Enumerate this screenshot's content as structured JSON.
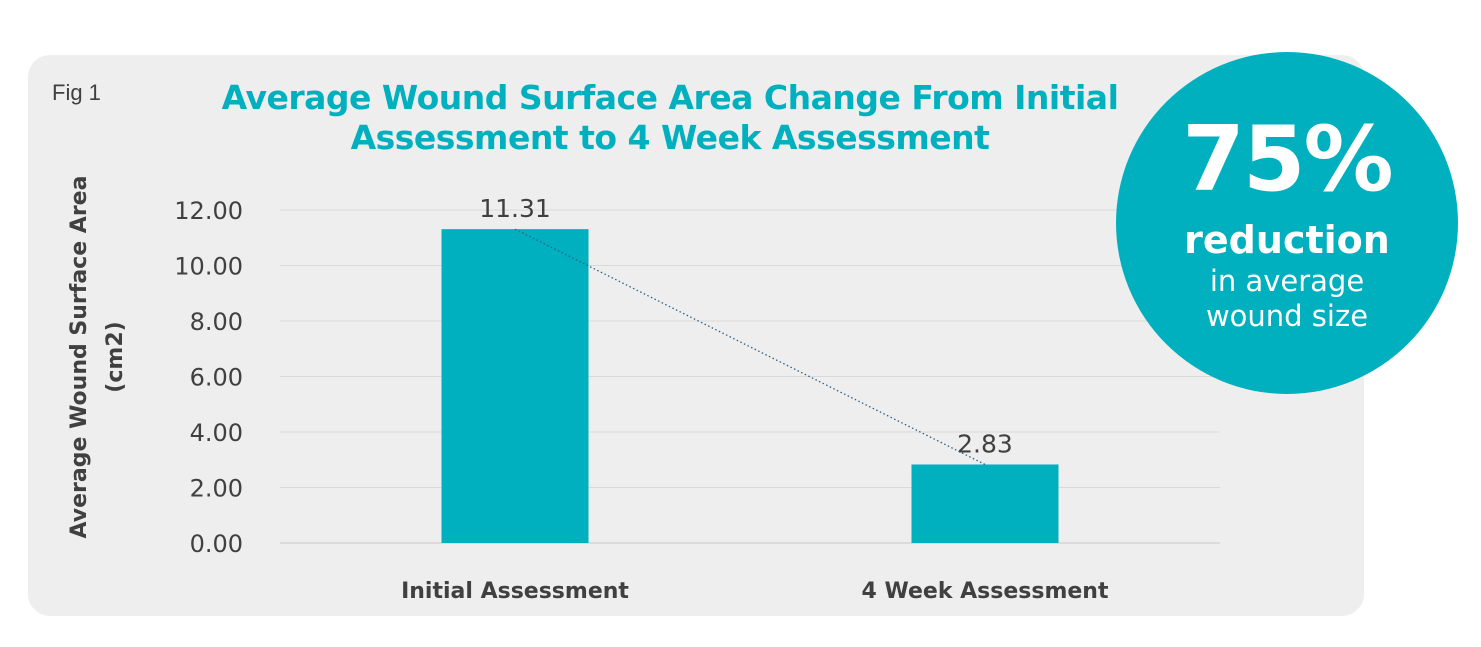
{
  "figure": {
    "label": "Fig 1"
  },
  "chart_data": {
    "type": "bar",
    "title_lines": [
      "Average Wound Surface Area Change From Initial",
      "Assessment to 4 Week Assessment"
    ],
    "categories": [
      "Initial Assessment",
      "4 Week Assessment"
    ],
    "values": [
      11.31,
      2.83
    ],
    "value_labels": [
      "11.31",
      "2.83"
    ],
    "ylabel_lines": [
      "Average Wound Surface Area",
      "(cm2)"
    ],
    "yticks": [
      "0.00",
      "2.00",
      "4.00",
      "6.00",
      "8.00",
      "10.00",
      "12.00"
    ],
    "ylim": [
      0,
      12
    ],
    "grid": true,
    "trendline": "dotted",
    "bar_color": "#00b0be"
  },
  "callout": {
    "percent": "75%",
    "headline": "reduction",
    "line1": "in average",
    "line2": "wound size",
    "color": "#00b0be"
  }
}
